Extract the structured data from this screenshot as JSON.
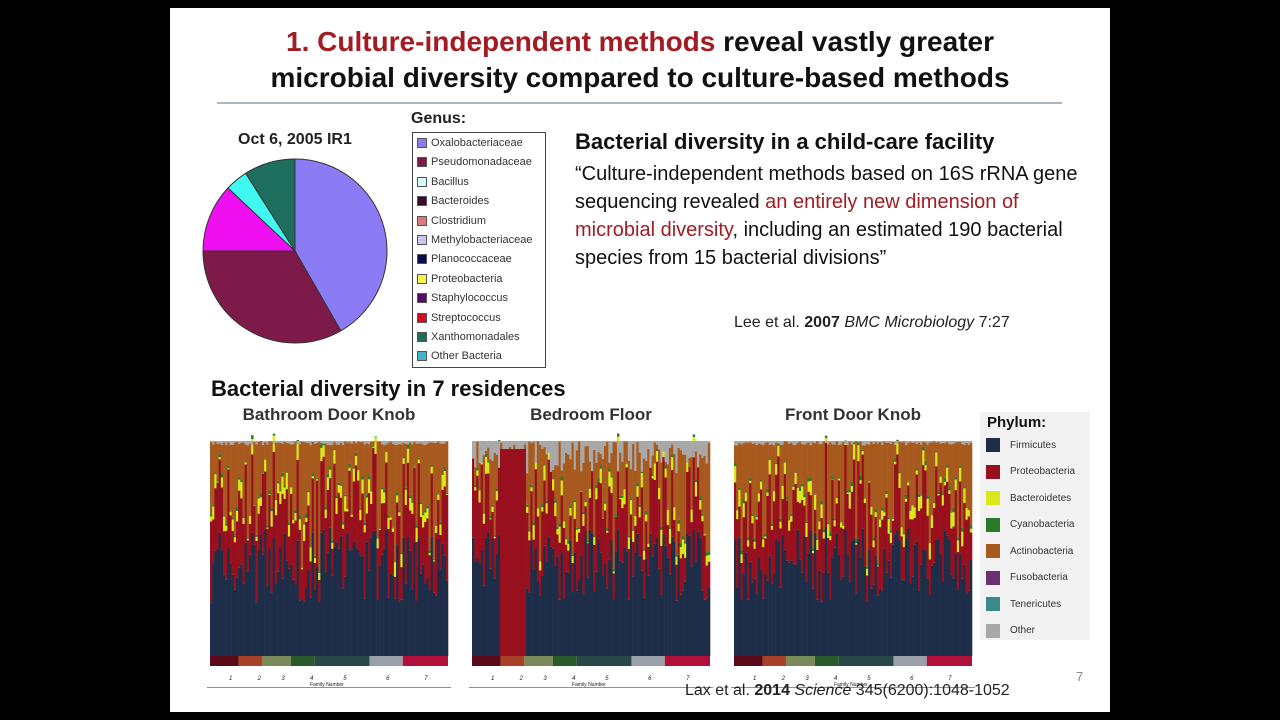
{
  "title": {
    "line1_red": "1. Culture-independent methods",
    "line1_rest": " reveal vastly greater",
    "line2": "microbial diversity compared to culture-based methods"
  },
  "pie": {
    "title": "Oct 6, 2005 IR1",
    "legend_title": "Genus:",
    "legend": [
      {
        "label": "Oxalobacteriaceae",
        "color": "#8b7cf6"
      },
      {
        "label": "Pseudomonadaceae",
        "color": "#7e1a4a"
      },
      {
        "label": "Bacillus",
        "color": "#d8fbfb"
      },
      {
        "label": "Bacteroides",
        "color": "#3a0a2a"
      },
      {
        "label": "Clostridium",
        "color": "#e07a7a"
      },
      {
        "label": "Methylobacteriaceae",
        "color": "#c8c4f0"
      },
      {
        "label": "Planococcaceae",
        "color": "#0a0a50"
      },
      {
        "label": "Proteobacteria",
        "color": "#f4f44a"
      },
      {
        "label": "Staphylococcus",
        "color": "#5a0a6a"
      },
      {
        "label": "Streptococcus",
        "color": "#d01020"
      },
      {
        "label": "Xanthomonadales",
        "color": "#1e6e5e"
      },
      {
        "label": "Other Bacteria",
        "color": "#40b8c8"
      }
    ],
    "slices": [
      {
        "percent": 41.7,
        "color": "#8b7cf6"
      },
      {
        "percent": 33.3,
        "color": "#7e1a4a"
      },
      {
        "percent": 12,
        "color": "#f00ff0"
      },
      {
        "percent": 4,
        "color": "#40f8f0"
      },
      {
        "percent": 9,
        "color": "#1e6e5e"
      }
    ]
  },
  "childcare": {
    "heading": "Bacterial diversity in a child-care facility",
    "quote_a": "“Culture-independent methods based on 16S rRNA gene sequencing revealed ",
    "quote_red": "an entirely new dimension of microbial diversity",
    "quote_b": ", including an estimated 190 bacterial species from 15 bacterial divisions”",
    "cite_a": "Lee et al. ",
    "cite_year": "2007",
    "cite_journal": " BMC Microbiology",
    "cite_b": " 7:27"
  },
  "residences": {
    "heading": "Bacterial diversity in 7 residences",
    "panels": [
      "Bathroom Door Knob",
      "Bedroom Floor",
      "Front Door Knob"
    ],
    "family_numbers": [
      "1",
      "2",
      "3",
      "4",
      "5",
      "6",
      "7"
    ],
    "axis_label": "Family Number",
    "family_colors": [
      "#5a0a18",
      "#a8402a",
      "#7a8a58",
      "#2a5a2a",
      "#284848",
      "#9aa0a8",
      "#b0103a"
    ],
    "phylum_title": "Phylum:",
    "phyla": [
      {
        "label": "Firmicutes",
        "color": "#1e2e48"
      },
      {
        "label": "Proteobacteria",
        "color": "#98101e"
      },
      {
        "label": "Bacteroidetes",
        "color": "#d8e818"
      },
      {
        "label": "Cyanobacteria",
        "color": "#2a7a2a"
      },
      {
        "label": "Actinobacteria",
        "color": "#a85a1e"
      },
      {
        "label": "Fusobacteria",
        "color": "#6a3070"
      },
      {
        "label": "Tenericutes",
        "color": "#3a8a88"
      },
      {
        "label": "Other",
        "color": "#a8a8a8"
      }
    ],
    "cite_a": "Lax et al. ",
    "cite_year": "2014",
    "cite_journal": " Science",
    "cite_b": " 345(6200):1048-1052"
  },
  "page_number": "7"
}
